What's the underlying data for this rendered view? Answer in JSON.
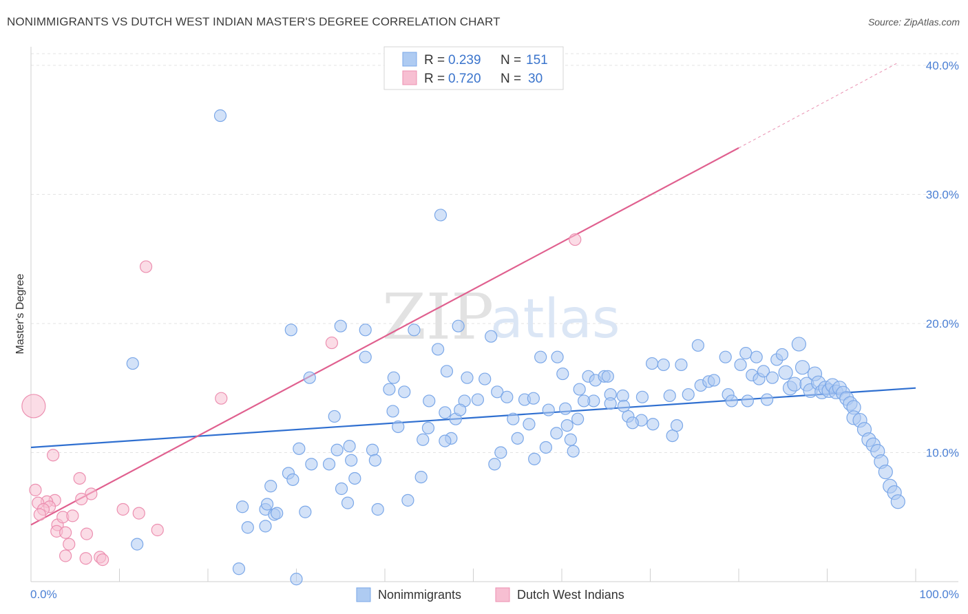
{
  "title": "NONIMMIGRANTS VS DUTCH WEST INDIAN MASTER'S DEGREE CORRELATION CHART",
  "source": "Source: ZipAtlas.com",
  "watermark": {
    "zip": "ZIP",
    "atlas": "atlas"
  },
  "chart_data": {
    "type": "scatter",
    "ylabel": "Master's Degree",
    "xlim": [
      0,
      100
    ],
    "ylim": [
      0,
      40
    ],
    "x_ticks": [
      0,
      10,
      20,
      30,
      40,
      50,
      60,
      70,
      80,
      90,
      100
    ],
    "x_tick_labels": {
      "left": "0.0%",
      "right": "100.0%"
    },
    "y_ticks": [
      10,
      20,
      30,
      40
    ],
    "y_tick_labels": [
      "10.0%",
      "20.0%",
      "30.0%",
      "40.0%"
    ],
    "legend": {
      "rows": [
        {
          "r_label": "R =",
          "r_value": "0.239",
          "n_label": "N =",
          "n_value": "151"
        },
        {
          "r_label": "R =",
          "r_value": "0.720",
          "n_label": "N =",
          "n_value": "30"
        }
      ]
    },
    "series": [
      {
        "name": "Nonimmigrants",
        "color": "#7aa7e8",
        "fill": "#aecbf2",
        "trend_color": "#2f6fd0",
        "trend": {
          "x0": 0,
          "y0": 10.4,
          "x1": 100,
          "y1": 15.0
        },
        "points": [
          [
            21.4,
            36.1
          ],
          [
            46.3,
            28.4
          ],
          [
            11.5,
            16.9
          ],
          [
            29.4,
            19.5
          ],
          [
            35.0,
            19.8
          ],
          [
            37.8,
            19.5
          ],
          [
            43.3,
            19.5
          ],
          [
            48.3,
            19.8
          ],
          [
            52.0,
            19.0
          ],
          [
            31.5,
            15.8
          ],
          [
            37.8,
            17.4
          ],
          [
            41.0,
            15.8
          ],
          [
            46.0,
            18.0
          ],
          [
            47.0,
            16.3
          ],
          [
            51.3,
            15.7
          ],
          [
            52.7,
            14.7
          ],
          [
            42.2,
            14.7
          ],
          [
            40.5,
            14.9
          ],
          [
            45.0,
            14.0
          ],
          [
            50.5,
            14.1
          ],
          [
            53.8,
            14.3
          ],
          [
            55.8,
            14.1
          ],
          [
            56.8,
            14.2
          ],
          [
            57.6,
            17.4
          ],
          [
            59.5,
            17.4
          ],
          [
            60.1,
            16.1
          ],
          [
            63.0,
            15.9
          ],
          [
            63.8,
            15.6
          ],
          [
            64.8,
            15.9
          ],
          [
            65.2,
            15.9
          ],
          [
            62.0,
            14.9
          ],
          [
            63.6,
            14.0
          ],
          [
            60.4,
            13.4
          ],
          [
            65.5,
            14.5
          ],
          [
            66.9,
            14.4
          ],
          [
            70.2,
            16.9
          ],
          [
            69.1,
            14.3
          ],
          [
            71.5,
            16.8
          ],
          [
            73.5,
            16.8
          ],
          [
            75.4,
            18.3
          ],
          [
            72.2,
            14.4
          ],
          [
            74.3,
            14.5
          ],
          [
            75.7,
            15.2
          ],
          [
            76.6,
            15.5
          ],
          [
            77.2,
            15.6
          ],
          [
            78.5,
            17.4
          ],
          [
            78.8,
            14.5
          ],
          [
            79.2,
            14.0
          ],
          [
            80.2,
            16.8
          ],
          [
            80.8,
            17.7
          ],
          [
            81.0,
            14.0
          ],
          [
            81.5,
            16.0
          ],
          [
            82.0,
            17.4
          ],
          [
            82.3,
            15.7
          ],
          [
            82.8,
            16.3
          ],
          [
            83.2,
            14.1
          ],
          [
            83.8,
            15.8
          ],
          [
            84.3,
            17.2
          ],
          [
            84.9,
            17.6
          ],
          [
            85.3,
            16.2
          ],
          [
            85.8,
            15.0
          ],
          [
            86.3,
            15.3
          ],
          [
            86.8,
            18.4
          ],
          [
            87.2,
            16.6
          ],
          [
            87.7,
            15.3
          ],
          [
            88.1,
            14.8
          ],
          [
            88.6,
            16.1
          ],
          [
            89.0,
            15.4
          ],
          [
            89.4,
            14.7
          ],
          [
            89.8,
            15.0
          ],
          [
            90.2,
            14.8
          ],
          [
            90.6,
            15.2
          ],
          [
            91.0,
            14.7
          ],
          [
            91.4,
            15.0
          ],
          [
            91.8,
            14.6
          ],
          [
            92.2,
            14.2
          ],
          [
            92.6,
            13.8
          ],
          [
            93.0,
            13.5
          ],
          [
            93.0,
            12.7
          ],
          [
            93.7,
            12.5
          ],
          [
            94.2,
            11.8
          ],
          [
            94.7,
            11.0
          ],
          [
            95.2,
            10.6
          ],
          [
            95.7,
            10.1
          ],
          [
            96.1,
            9.3
          ],
          [
            96.6,
            8.5
          ],
          [
            97.1,
            7.4
          ],
          [
            97.6,
            6.9
          ],
          [
            98.0,
            6.2
          ],
          [
            67.5,
            12.8
          ],
          [
            69.0,
            12.5
          ],
          [
            70.3,
            12.2
          ],
          [
            72.5,
            11.3
          ],
          [
            68.0,
            12.3
          ],
          [
            67.0,
            13.6
          ],
          [
            73.0,
            12.1
          ],
          [
            65.5,
            13.8
          ],
          [
            61.8,
            12.6
          ],
          [
            60.6,
            12.1
          ],
          [
            58.5,
            13.3
          ],
          [
            56.3,
            12.2
          ],
          [
            54.5,
            12.6
          ],
          [
            53.1,
            10.0
          ],
          [
            52.4,
            9.1
          ],
          [
            55.0,
            11.1
          ],
          [
            56.9,
            9.5
          ],
          [
            58.2,
            10.4
          ],
          [
            59.4,
            11.5
          ],
          [
            61.0,
            11.0
          ],
          [
            61.3,
            10.1
          ],
          [
            62.5,
            14.0
          ],
          [
            49.3,
            15.8
          ],
          [
            49.0,
            14.0
          ],
          [
            48.0,
            12.6
          ],
          [
            48.5,
            13.3
          ],
          [
            46.8,
            13.1
          ],
          [
            44.9,
            11.9
          ],
          [
            44.3,
            11.0
          ],
          [
            47.5,
            11.1
          ],
          [
            46.8,
            10.9
          ],
          [
            41.5,
            12.0
          ],
          [
            38.6,
            10.2
          ],
          [
            36.2,
            9.4
          ],
          [
            34.6,
            10.2
          ],
          [
            33.7,
            9.1
          ],
          [
            31.7,
            9.1
          ],
          [
            38.9,
            9.4
          ],
          [
            36.6,
            8.0
          ],
          [
            29.1,
            8.4
          ],
          [
            29.6,
            7.9
          ],
          [
            27.1,
            7.4
          ],
          [
            23.9,
            5.8
          ],
          [
            26.5,
            5.6
          ],
          [
            26.7,
            6.0
          ],
          [
            27.5,
            5.2
          ],
          [
            27.8,
            5.3
          ],
          [
            26.5,
            4.3
          ],
          [
            24.5,
            4.2
          ],
          [
            31.0,
            5.4
          ],
          [
            35.1,
            7.2
          ],
          [
            35.8,
            6.1
          ],
          [
            39.2,
            5.6
          ],
          [
            42.6,
            6.3
          ],
          [
            44.1,
            8.1
          ],
          [
            36.0,
            10.5
          ],
          [
            30.3,
            10.3
          ],
          [
            40.9,
            13.2
          ],
          [
            34.3,
            12.8
          ],
          [
            12.0,
            2.9
          ],
          [
            23.5,
            1.0
          ],
          [
            30.0,
            0.2
          ]
        ],
        "point_sizes": {
          "large_from_x": 85
        }
      },
      {
        "name": "Dutch West Indians",
        "color": "#ec8fb0",
        "fill": "#f7bfd2",
        "trend_color": "#e0608f",
        "trend": {
          "x0": 0,
          "y0": 4.4,
          "x1": 80,
          "y1": 33.6
        },
        "trend_dashed_to": {
          "x": 98,
          "y": 40.2
        },
        "points": [
          [
            0.3,
            13.6
          ],
          [
            13.0,
            24.4
          ],
          [
            61.5,
            26.5
          ],
          [
            34.0,
            18.5
          ],
          [
            21.5,
            14.2
          ],
          [
            2.5,
            9.8
          ],
          [
            5.5,
            8.0
          ],
          [
            0.5,
            7.1
          ],
          [
            6.8,
            6.8
          ],
          [
            5.7,
            6.4
          ],
          [
            2.7,
            6.3
          ],
          [
            1.8,
            6.2
          ],
          [
            0.8,
            6.1
          ],
          [
            2.1,
            5.8
          ],
          [
            1.4,
            5.6
          ],
          [
            1.0,
            5.2
          ],
          [
            10.4,
            5.6
          ],
          [
            12.2,
            5.3
          ],
          [
            3.0,
            4.4
          ],
          [
            3.6,
            5.0
          ],
          [
            4.7,
            5.1
          ],
          [
            2.9,
            3.9
          ],
          [
            3.9,
            3.8
          ],
          [
            6.3,
            3.7
          ],
          [
            14.3,
            4.0
          ],
          [
            4.3,
            2.9
          ],
          [
            3.9,
            2.0
          ],
          [
            6.2,
            1.8
          ],
          [
            7.8,
            1.9
          ],
          [
            8.1,
            1.7
          ]
        ],
        "point_sizes": {
          "large_index": 0
        }
      }
    ]
  },
  "bottom_legend": [
    "Nonimmigrants",
    "Dutch West Indians"
  ]
}
